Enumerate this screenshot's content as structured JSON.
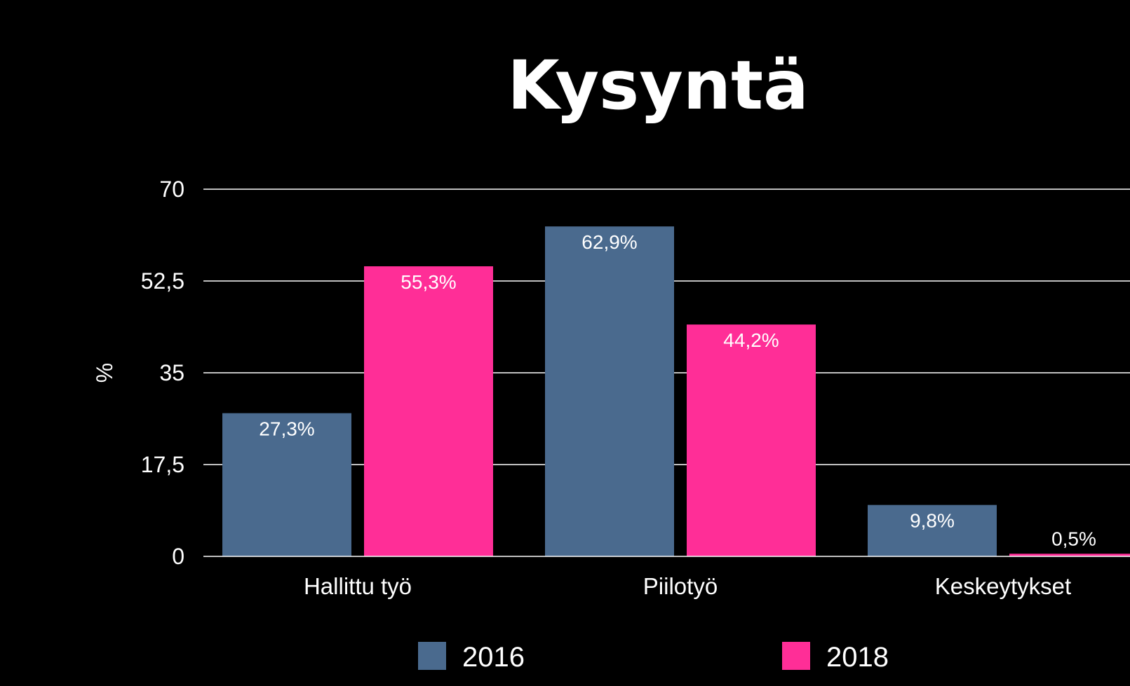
{
  "chart_data": {
    "type": "bar",
    "title": "Kysyntä",
    "ylabel": "%",
    "xlabel": "",
    "ylim": [
      0,
      70
    ],
    "yticks": [
      "0",
      "17,5",
      "35",
      "52,5",
      "70"
    ],
    "yticks_values": [
      0,
      17.5,
      35,
      52.5,
      70
    ],
    "grid": true,
    "legend_position": "bottom",
    "categories": [
      "Hallittu työ",
      "Piilotyö",
      "Keskeytykset"
    ],
    "series": [
      {
        "name": "2016",
        "color": "#4a6a8e",
        "values": [
          27.3,
          62.9,
          9.8
        ],
        "labels": [
          "27,3%",
          "62,9%",
          "9,8%"
        ]
      },
      {
        "name": "2018",
        "color": "#ff2e97",
        "values": [
          55.3,
          44.2,
          0.5
        ],
        "labels": [
          "55,3%",
          "44,2%",
          "0,5%"
        ]
      }
    ]
  }
}
